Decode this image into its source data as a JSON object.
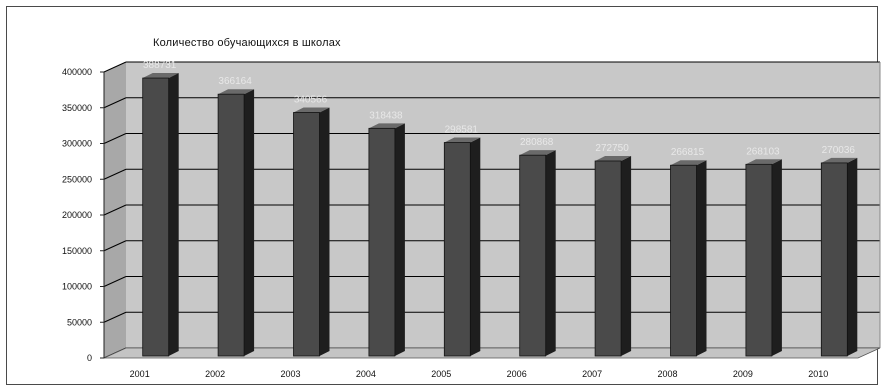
{
  "chart_data": {
    "type": "bar",
    "title": "Количество обучающихся в школах",
    "categories": [
      "2001",
      "2002",
      "2003",
      "2004",
      "2005",
      "2006",
      "2007",
      "2008",
      "2009",
      "2010"
    ],
    "values": [
      388731,
      366164,
      340566,
      318438,
      298581,
      280868,
      272750,
      266815,
      268103,
      270036
    ],
    "data_labels": [
      "388731",
      "366164",
      "340566",
      "318438",
      "298581",
      "280868",
      "272750",
      "266815",
      "268103",
      "270036"
    ],
    "ylim": [
      0,
      400000
    ],
    "yticks": [
      "0",
      "50000",
      "100000",
      "150000",
      "200000",
      "250000",
      "300000",
      "350000",
      "400000"
    ],
    "xlabel": "",
    "ylabel": "",
    "grid": true,
    "style": "3d-column",
    "colors": {
      "bar_front": "#4a4a4a",
      "bar_side": "#1e1e1e",
      "bar_top": "#6a6a6a",
      "back_wall": "#c8c8c8",
      "side_wall": "#a8a8a8",
      "floor": "#c4c4c4",
      "data_label": "#e8e8e8",
      "grid": "#000000"
    }
  }
}
